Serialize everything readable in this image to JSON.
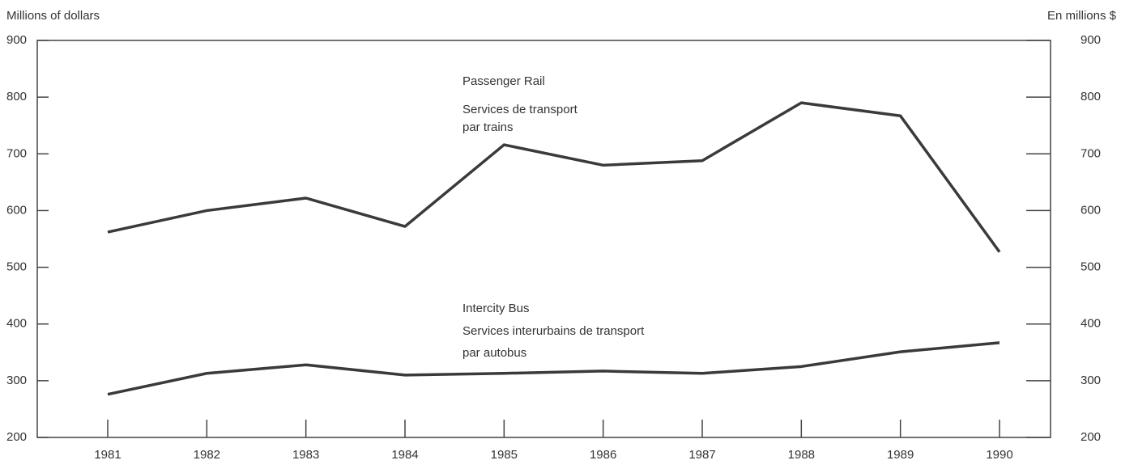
{
  "chart_data": {
    "type": "line",
    "y_label": "Millions of dollars",
    "y2_label": "En millions $",
    "categories": [
      "1981",
      "1982",
      "1983",
      "1984",
      "1985",
      "1986",
      "1987",
      "1988",
      "1989",
      "1990"
    ],
    "series": [
      {
        "name": "Passenger Rail",
        "color": "#3a3a3a",
        "values": [
          562,
          600,
          622,
          572,
          716,
          680,
          688,
          790,
          767,
          527
        ]
      },
      {
        "name": "Intercity Bus",
        "color": "#3a3a3a",
        "values": [
          276,
          313,
          328,
          310,
          313,
          317,
          313,
          325,
          351,
          367
        ]
      }
    ],
    "annotations": [
      {
        "lines": [
          "Passenger Rail",
          "Services de transport",
          "par trains"
        ]
      },
      {
        "lines": [
          "Intercity Bus",
          "Services interurbains de transport",
          "par autobus"
        ]
      }
    ],
    "ylim": [
      200,
      900
    ],
    "yticks": [
      200,
      300,
      400,
      500,
      600,
      700,
      800,
      900
    ],
    "y2lim": [
      200,
      900
    ],
    "y2ticks": [
      200,
      300,
      400,
      500,
      600,
      700,
      800,
      900
    ],
    "grid": false
  }
}
